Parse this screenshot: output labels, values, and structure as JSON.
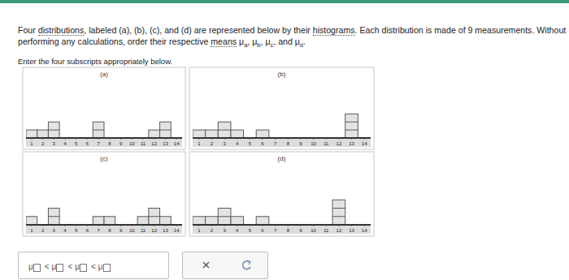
{
  "question": [
    {
      "text": "Four "
    },
    {
      "text": "distributions",
      "link": true
    },
    {
      "text": ", labeled (a), (b), (c), and (d) are represented below by their "
    },
    {
      "text": "histograms",
      "link": true
    },
    {
      "text": ". Each distribution is made of 9 measurements. Without performing any calculations, order their respective "
    },
    {
      "text": "means",
      "link": true
    },
    {
      "text": " μ"
    },
    {
      "text": "a",
      "sub": true
    },
    {
      "text": ", μ"
    },
    {
      "text": "b",
      "sub": true
    },
    {
      "text": ", μ"
    },
    {
      "text": "c",
      "sub": true
    },
    {
      "text": ", and μ"
    },
    {
      "text": "d",
      "sub": true
    },
    {
      "text": "."
    }
  ],
  "instruction": "Enter the four subscripts appropriately below.",
  "answer": {
    "symbol": "μ",
    "separator": "<",
    "slots": 4
  },
  "chart_data": [
    {
      "type": "histogram",
      "title": "(a)",
      "bins": [
        0.5,
        1.5,
        2.5,
        3.5,
        4.5,
        5.5,
        6.5,
        7.5,
        8.5,
        9.5,
        10.5,
        11.5,
        12.5,
        13.5,
        14.5
      ],
      "values": [
        1,
        1,
        2,
        0,
        0,
        0,
        2,
        0,
        0,
        0,
        0,
        1,
        2,
        0
      ],
      "xlim": [
        0.5,
        14.5
      ],
      "xticks": [
        1,
        2,
        3,
        4,
        5,
        6,
        7,
        8,
        9,
        10,
        11,
        12,
        13,
        14
      ],
      "ylim": [
        0,
        8
      ],
      "tick_labels": "x",
      "color": "#e3e3e3"
    },
    {
      "type": "histogram",
      "title": "(b)",
      "bins": [
        0.5,
        1.5,
        2.5,
        3.5,
        4.5,
        5.5,
        6.5,
        7.5,
        8.5,
        9.5,
        10.5,
        11.5,
        12.5,
        13.5,
        14.5
      ],
      "values": [
        1,
        1,
        2,
        1,
        0,
        1,
        0,
        0,
        0,
        0,
        0,
        0,
        3,
        0
      ],
      "xlim": [
        0.5,
        14.5
      ],
      "xticks": [
        1,
        2,
        3,
        4,
        5,
        6,
        7,
        8,
        9,
        10,
        11,
        12,
        13,
        14
      ],
      "ylim": [
        0,
        8
      ],
      "tick_labels": "x",
      "color": "#e3e3e3"
    },
    {
      "type": "histogram",
      "title": "(c)",
      "bins": [
        0.5,
        1.5,
        2.5,
        3.5,
        4.5,
        5.5,
        6.5,
        7.5,
        8.5,
        9.5,
        10.5,
        11.5,
        12.5,
        13.5,
        14.5
      ],
      "values": [
        1,
        0,
        2,
        0,
        0,
        0,
        1,
        1,
        0,
        0,
        1,
        2,
        1,
        0
      ],
      "xlim": [
        0.5,
        14.5
      ],
      "xticks": [
        1,
        2,
        3,
        4,
        5,
        6,
        7,
        8,
        9,
        10,
        11,
        12,
        13,
        14
      ],
      "ylim": [
        0,
        8
      ],
      "tick_labels": "x",
      "color": "#e3e3e3"
    },
    {
      "type": "histogram",
      "title": "(d)",
      "bins": [
        0.5,
        1.5,
        2.5,
        3.5,
        4.5,
        5.5,
        6.5,
        7.5,
        8.5,
        9.5,
        10.5,
        11.5,
        12.5,
        13.5,
        14.5
      ],
      "values": [
        1,
        1,
        2,
        1,
        0,
        1,
        0,
        0,
        0,
        0,
        0,
        3,
        0,
        0
      ],
      "xlim": [
        0.5,
        14.5
      ],
      "xticks": [
        1,
        2,
        3,
        4,
        5,
        6,
        7,
        8,
        9,
        10,
        11,
        12,
        13,
        14
      ],
      "ylim": [
        0,
        8
      ],
      "tick_labels": "x",
      "color": "#e3e3e3"
    }
  ]
}
